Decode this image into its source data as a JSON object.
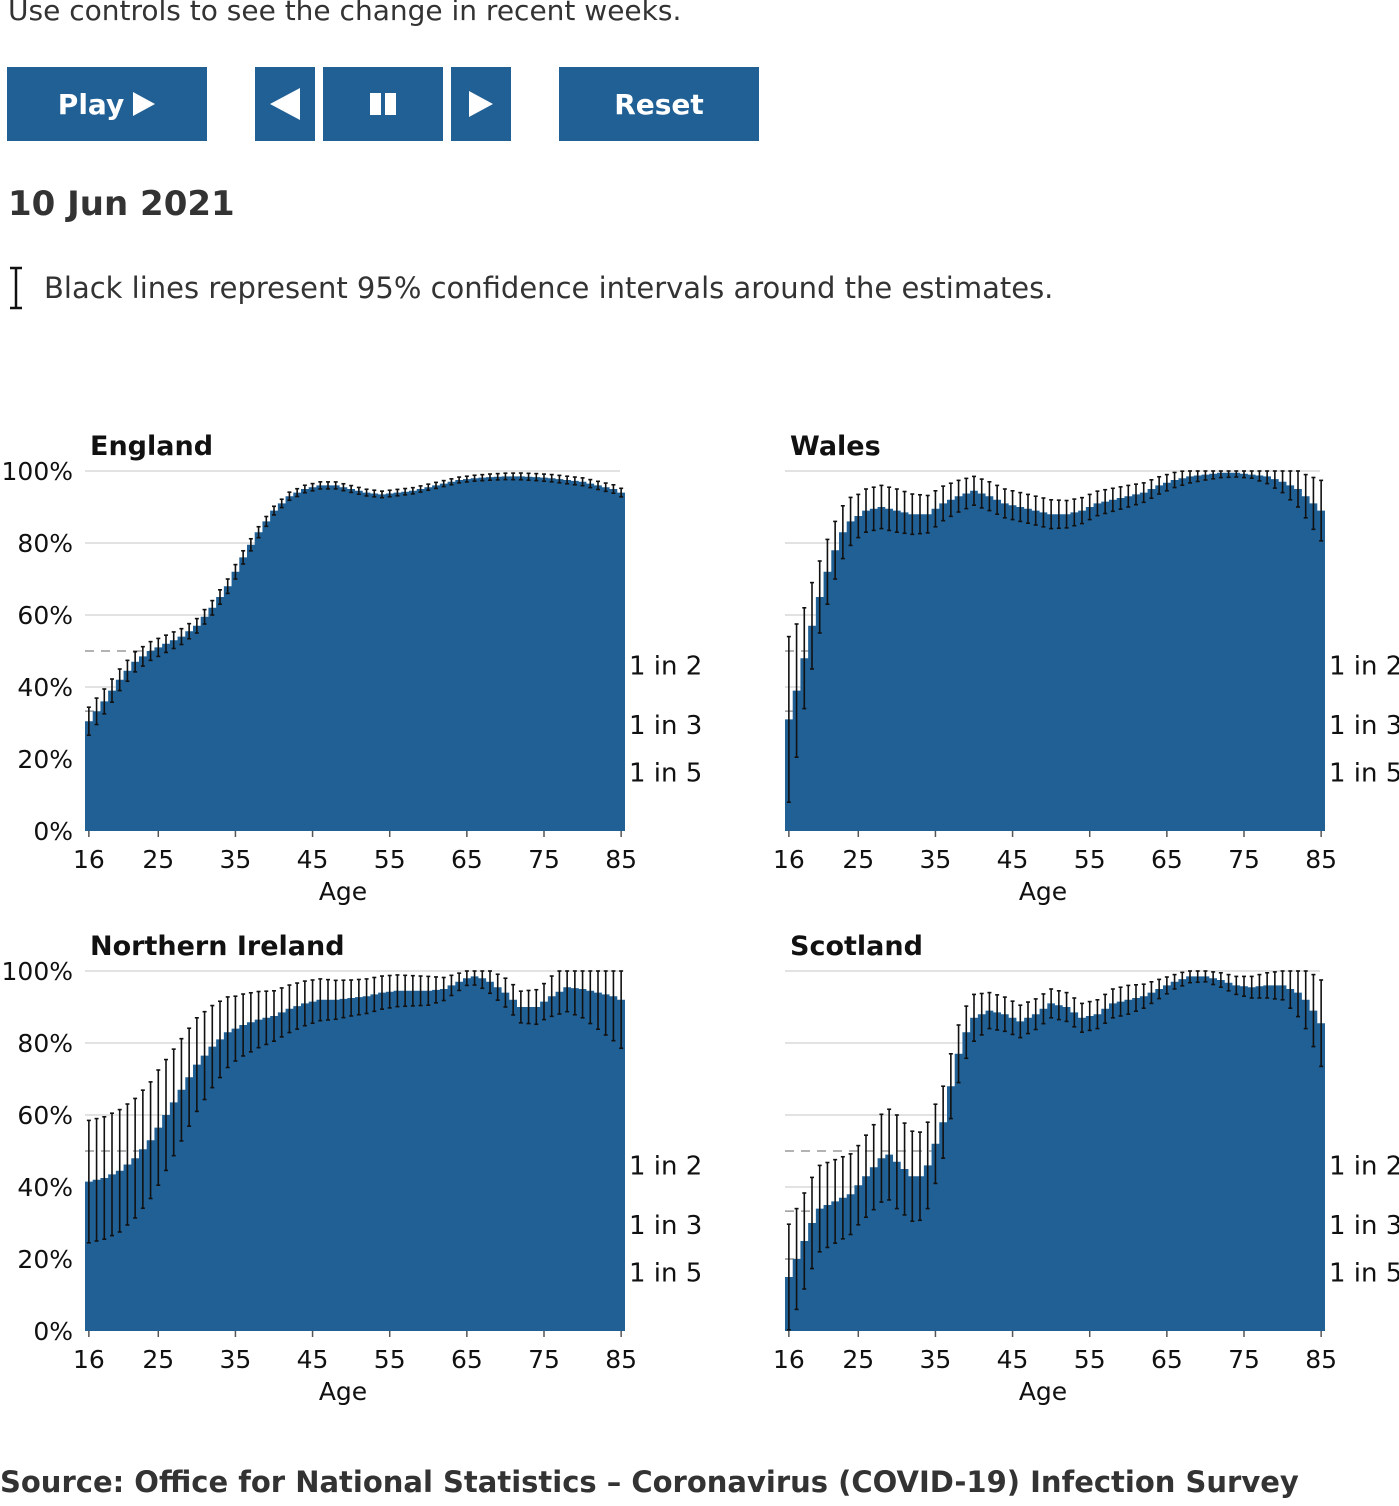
{
  "intro_text": "Use controls to see the change in recent weeks.",
  "controls": {
    "play_label": "Play",
    "play_icon": "play-triangle-icon",
    "back_icon": "step-back-icon",
    "pause_icon": "pause-icon",
    "forward_icon": "step-forward-icon",
    "reset_label": "Reset",
    "button_color": "#206095"
  },
  "date_label": "10 Jun 2021",
  "ci_legend": {
    "icon": "confidence-interval-icon",
    "text": "Black lines represent 95% confidence intervals around the estimates."
  },
  "source": "Source: Office for National Statistics – Coronavirus (COVID-19) Infection Survey",
  "chart_data": [
    {
      "type": "area",
      "title": "England",
      "xlabel": "Age",
      "xticks": [
        16,
        25,
        35,
        45,
        55,
        65,
        75,
        85
      ],
      "yticks": [
        "0%",
        "20%",
        "40%",
        "60%",
        "80%",
        "100%"
      ],
      "ylim": [
        0,
        100
      ],
      "reference_lines": [
        {
          "label": "1 in 2",
          "value": 50
        },
        {
          "label": "1 in 3",
          "value": 33.3
        },
        {
          "label": "1 in 5",
          "value": 20
        }
      ],
      "color": "#206095",
      "x_range": [
        15.5,
        85.5
      ],
      "knots": {
        "x": [
          15.5,
          16,
          18,
          20,
          22,
          24,
          26,
          28,
          30,
          32,
          34,
          36,
          38,
          40,
          42,
          44,
          46,
          48,
          50,
          52,
          54,
          56,
          58,
          60,
          62,
          64,
          66,
          68,
          70,
          72,
          74,
          76,
          78,
          80,
          82,
          84,
          85,
          85.5
        ],
        "y": [
          30,
          30.5,
          36,
          42,
          47,
          50,
          52,
          54,
          57,
          62,
          68,
          76,
          83,
          89,
          93,
          95,
          96,
          96,
          95,
          94,
          93.5,
          94,
          94.5,
          95.5,
          96.5,
          97.5,
          98,
          98.3,
          98.5,
          98.5,
          98.3,
          98,
          97.5,
          97,
          96,
          95,
          94,
          93.5
        ]
      },
      "ci_half_width": {
        "x": [
          15.5,
          20,
          25,
          30,
          35,
          40,
          45,
          65,
          85.5
        ],
        "y": [
          4,
          3,
          2.5,
          2,
          2,
          1.2,
          1,
          0.8,
          1.2
        ]
      }
    },
    {
      "type": "area",
      "title": "Wales",
      "xlabel": "Age",
      "xticks": [
        16,
        25,
        35,
        45,
        55,
        65,
        75,
        85
      ],
      "yticks": [
        "0%",
        "20%",
        "40%",
        "60%",
        "80%",
        "100%"
      ],
      "ylim": [
        0,
        100
      ],
      "reference_lines": [
        {
          "label": "1 in 2",
          "value": 50
        },
        {
          "label": "1 in 3",
          "value": 33.3
        },
        {
          "label": "1 in 5",
          "value": 20
        }
      ],
      "color": "#206095",
      "x_range": [
        15.5,
        85.5
      ],
      "knots": {
        "x": [
          15.5,
          16,
          17,
          18,
          19,
          20,
          21,
          22,
          23,
          24,
          26,
          28,
          30,
          32,
          34,
          36,
          38,
          40,
          42,
          44,
          46,
          48,
          50,
          52,
          54,
          56,
          58,
          60,
          62,
          64,
          66,
          68,
          70,
          72,
          74,
          76,
          78,
          80,
          81,
          82,
          83,
          84,
          85,
          85.5
        ],
        "y": [
          31,
          31,
          39,
          48,
          57,
          65,
          72,
          78,
          83,
          86,
          89,
          90,
          89,
          88,
          88,
          91,
          93,
          94.5,
          93,
          91,
          90,
          89,
          88,
          88,
          89,
          91,
          92,
          93,
          94,
          96,
          97.5,
          98.5,
          99,
          99.5,
          99.5,
          99,
          98.5,
          97,
          96,
          95,
          93,
          91,
          89,
          89
        ]
      },
      "ci_half_width": {
        "x": [
          15.5,
          16,
          18,
          20,
          22,
          25,
          30,
          40,
          50,
          60,
          70,
          76,
          80,
          83,
          85.5
        ],
        "y": [
          23,
          23,
          14,
          10,
          8,
          6,
          6,
          4,
          4,
          3,
          1.5,
          1,
          3,
          6,
          9
        ]
      }
    },
    {
      "type": "area",
      "title": "Northern Ireland",
      "xlabel": "Age",
      "xticks": [
        16,
        25,
        35,
        45,
        55,
        65,
        75,
        85
      ],
      "yticks": [
        "0%",
        "20%",
        "40%",
        "60%",
        "80%",
        "100%"
      ],
      "ylim": [
        0,
        100
      ],
      "reference_lines": [
        {
          "label": "1 in 2",
          "value": 50
        },
        {
          "label": "1 in 3",
          "value": 33.3
        },
        {
          "label": "1 in 5",
          "value": 20
        }
      ],
      "color": "#206095",
      "x_range": [
        15.5,
        85.5
      ],
      "knots": {
        "x": [
          15.5,
          16,
          18,
          20,
          22,
          24,
          26,
          28,
          30,
          32,
          34,
          36,
          38,
          40,
          42,
          44,
          46,
          48,
          50,
          52,
          54,
          56,
          58,
          60,
          62,
          64,
          65,
          66,
          67,
          68,
          70,
          72,
          74,
          76,
          78,
          80,
          82,
          84,
          85,
          85.5
        ],
        "y": [
          41,
          41.5,
          42.5,
          44.5,
          48,
          53,
          60,
          67,
          74,
          79,
          83,
          85,
          86.5,
          87.5,
          89.5,
          91,
          92,
          92,
          92.5,
          93,
          94,
          94.5,
          94.5,
          94.5,
          95,
          97,
          98,
          98.5,
          98,
          97,
          94,
          90,
          90,
          93,
          95.5,
          95,
          94,
          93,
          92,
          91.5
        ]
      },
      "ci_half_width": {
        "x": [
          15.5,
          20,
          25,
          30,
          35,
          40,
          50,
          60,
          65,
          70,
          75,
          80,
          85.5
        ],
        "y": [
          17,
          17,
          16,
          13,
          9,
          7,
          5,
          4,
          2,
          4,
          5,
          8,
          14
        ]
      }
    },
    {
      "type": "area",
      "title": "Scotland",
      "xlabel": "Age",
      "xticks": [
        16,
        25,
        35,
        45,
        55,
        65,
        75,
        85
      ],
      "yticks": [
        "0%",
        "20%",
        "40%",
        "60%",
        "80%",
        "100%"
      ],
      "ylim": [
        0,
        100
      ],
      "reference_lines": [
        {
          "label": "1 in 2",
          "value": 50
        },
        {
          "label": "1 in 3",
          "value": 33.3
        },
        {
          "label": "1 in 5",
          "value": 20
        }
      ],
      "color": "#206095",
      "x_range": [
        15.5,
        85.5
      ],
      "knots": {
        "x": [
          15.5,
          16,
          17,
          18,
          19,
          20,
          22,
          24,
          26,
          28,
          29,
          30,
          32,
          33,
          34,
          35,
          36,
          37,
          38,
          39,
          40,
          42,
          44,
          46,
          48,
          50,
          52,
          54,
          56,
          58,
          60,
          62,
          64,
          66,
          68,
          70,
          72,
          74,
          76,
          78,
          80,
          82,
          83,
          84,
          85,
          85.5
        ],
        "y": [
          15,
          15,
          20,
          25,
          30,
          34,
          36,
          38,
          43,
          48,
          49,
          47,
          43,
          43,
          46,
          52,
          58,
          68,
          77,
          83,
          87,
          89,
          88,
          86,
          88,
          91,
          90,
          87,
          88,
          91,
          92,
          93,
          95,
          97,
          98.5,
          98.5,
          97.5,
          96,
          95.5,
          96,
          96,
          94,
          92,
          89,
          85.5,
          85
        ]
      },
      "ci_half_width": {
        "x": [
          15.5,
          20,
          25,
          30,
          34,
          38,
          42,
          50,
          60,
          66,
          70,
          76,
          80,
          83,
          85.5
        ],
        "y": [
          15,
          12,
          11,
          13,
          12,
          8,
          5,
          4,
          4,
          2,
          1.5,
          3,
          4,
          8,
          13
        ]
      }
    }
  ]
}
